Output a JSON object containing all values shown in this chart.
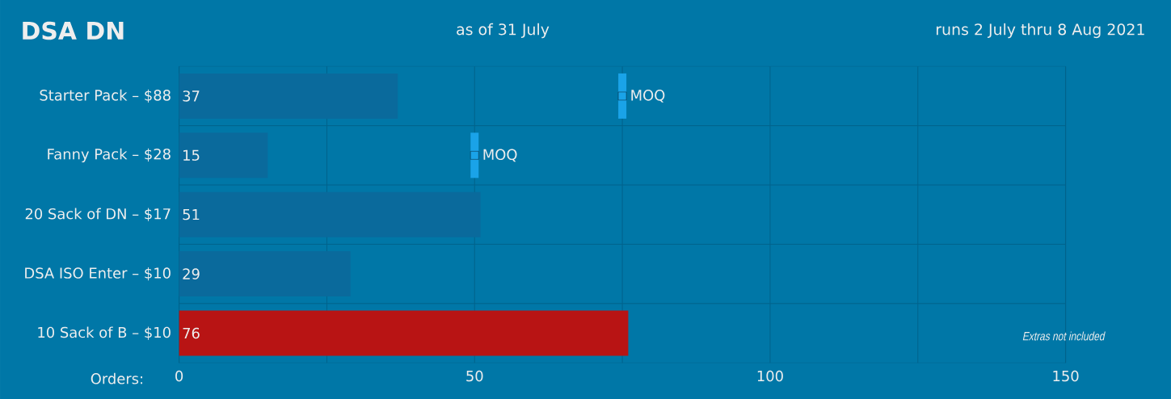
{
  "chart_data": {
    "type": "bar",
    "orientation": "horizontal",
    "title": "DSA DN",
    "subtitle": "as of 31 July",
    "xlabel": "Orders:",
    "categories": [
      "Starter Pack – $88",
      "Fanny Pack – $28",
      "20 Sack of DN – $17",
      "DSA ISO Enter – $10",
      "10 Sack of B – $10"
    ],
    "series": [
      {
        "values": [
          37,
          15,
          51,
          29,
          76
        ],
        "colors": [
          "#0a6a9c",
          "#0a6a9c",
          "#0a6a9c",
          "#0a6a9c",
          "#b81414"
        ]
      },
      {
        "type": "scatter",
        "marker": "square",
        "values": [
          75,
          50,
          null,
          null,
          null
        ],
        "value_labels": [
          "MOQ",
          "MOQ",
          null,
          null,
          null
        ],
        "color": "#1aa3e8"
      }
    ],
    "data_labels": true,
    "xlim": [
      0,
      150
    ],
    "xticks": [
      0,
      {
        "value": 25,
        "label": null
      },
      50,
      {
        "value": 75,
        "label": null
      },
      100,
      {
        "value": 125,
        "label": null
      },
      150
    ],
    "grid": true,
    "annotations": [
      "runs 2 July thru 8 Aug 2021",
      "Extras not included"
    ]
  }
}
